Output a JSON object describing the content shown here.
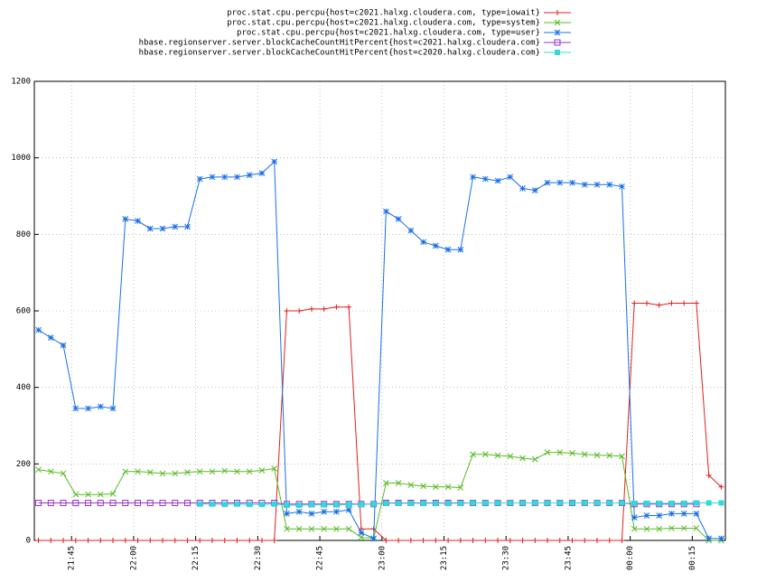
{
  "chart_data": {
    "type": "line",
    "legend": "top-right",
    "grid": true,
    "xlim": [
      1296,
      1463
    ],
    "xticks": [
      {
        "value": 1305,
        "label": "21:45"
      },
      {
        "value": 1320,
        "label": "22:00"
      },
      {
        "value": 1335,
        "label": "22:15"
      },
      {
        "value": 1350,
        "label": "22:30"
      },
      {
        "value": 1365,
        "label": "22:45"
      },
      {
        "value": 1380,
        "label": "23:00"
      },
      {
        "value": 1395,
        "label": "23:15"
      },
      {
        "value": 1410,
        "label": "23:30"
      },
      {
        "value": 1425,
        "label": "23:45"
      },
      {
        "value": 1440,
        "label": "00:00"
      },
      {
        "value": 1455,
        "label": "00:15"
      }
    ],
    "ylim": [
      0,
      1200
    ],
    "yticks": [
      0,
      200,
      400,
      600,
      800,
      1000,
      1200
    ],
    "x": [
      1297,
      1300,
      1303,
      1306,
      1309,
      1312,
      1315,
      1318,
      1321,
      1324,
      1327,
      1330,
      1333,
      1336,
      1339,
      1342,
      1345,
      1348,
      1351,
      1354,
      1357,
      1360,
      1363,
      1366,
      1369,
      1372,
      1375,
      1378,
      1381,
      1384,
      1387,
      1390,
      1393,
      1396,
      1399,
      1402,
      1405,
      1408,
      1411,
      1414,
      1417,
      1420,
      1423,
      1426,
      1429,
      1432,
      1435,
      1438,
      1441,
      1444,
      1447,
      1450,
      1453,
      1456,
      1459,
      1462
    ],
    "series": [
      {
        "name": "proc.stat.cpu.percpu{host=c2021.halxg.cloudera.com, type=iowait}",
        "color": "#e02020",
        "marker": "plus",
        "values": [
          0,
          0,
          0,
          0,
          0,
          0,
          0,
          0,
          0,
          0,
          0,
          0,
          0,
          0,
          0,
          0,
          0,
          0,
          0,
          0,
          600,
          600,
          605,
          605,
          610,
          610,
          30,
          30,
          0,
          0,
          0,
          0,
          0,
          0,
          0,
          0,
          0,
          0,
          0,
          0,
          0,
          0,
          0,
          0,
          0,
          0,
          0,
          0,
          620,
          620,
          615,
          620,
          620,
          620,
          170,
          140
        ]
      },
      {
        "name": "proc.stat.cpu.percpu{host=c2021.halxg.cloudera.com, type=system}",
        "color": "#55bb22",
        "marker": "cross",
        "values": [
          185,
          180,
          175,
          120,
          120,
          120,
          122,
          180,
          180,
          178,
          175,
          175,
          178,
          180,
          180,
          182,
          180,
          180,
          183,
          188,
          30,
          30,
          30,
          30,
          30,
          30,
          8,
          5,
          150,
          150,
          145,
          142,
          140,
          140,
          138,
          225,
          225,
          222,
          220,
          215,
          212,
          230,
          230,
          228,
          225,
          223,
          222,
          220,
          30,
          30,
          30,
          32,
          32,
          32,
          0,
          0
        ]
      },
      {
        "name": "proc.stat.cpu.percpu{host=c2021.halxg.cloudera.com, type=user}",
        "color": "#1a70e8",
        "marker": "star",
        "values": [
          550,
          530,
          510,
          345,
          345,
          350,
          345,
          840,
          835,
          815,
          815,
          820,
          820,
          945,
          950,
          950,
          950,
          955,
          960,
          990,
          70,
          75,
          70,
          75,
          75,
          80,
          20,
          5,
          860,
          840,
          810,
          780,
          770,
          760,
          760,
          950,
          945,
          940,
          950,
          920,
          915,
          935,
          935,
          935,
          930,
          930,
          930,
          925,
          60,
          65,
          65,
          70,
          70,
          70,
          5,
          5
        ]
      },
      {
        "name": "hbase.regionserver.server.blockCacheCountHitPercent{host=c2021.halxg.cloudera.com}",
        "color": "#9933cc",
        "marker": "square",
        "values": [
          98,
          98,
          98,
          98,
          98,
          98,
          98,
          98,
          98,
          98,
          98,
          98,
          98,
          98,
          98,
          98,
          98,
          98,
          98,
          98,
          95,
          95,
          95,
          95,
          95,
          95,
          95,
          95,
          98,
          98,
          98,
          98,
          98,
          98,
          98,
          98,
          98,
          98,
          98,
          98,
          98,
          98,
          98,
          98,
          98,
          98,
          98,
          98,
          95,
          95,
          95,
          95,
          95,
          95,
          null,
          null
        ]
      },
      {
        "name": "hbase.regionserver.server.blockCacheCountHitPercent{host=c2020.halxg.cloudera.com}",
        "color": "#33d8d8",
        "marker": "filled-square",
        "values": [
          null,
          null,
          null,
          null,
          null,
          null,
          null,
          null,
          null,
          null,
          null,
          null,
          null,
          95,
          95,
          94,
          95,
          94,
          94,
          95,
          92,
          92,
          93,
          93,
          93,
          94,
          94,
          95,
          97,
          97,
          97,
          97,
          97,
          97,
          97,
          98,
          98,
          98,
          98,
          98,
          98,
          98,
          98,
          98,
          98,
          98,
          98,
          98,
          97,
          97,
          97,
          97,
          97,
          98,
          98,
          98
        ]
      }
    ]
  }
}
